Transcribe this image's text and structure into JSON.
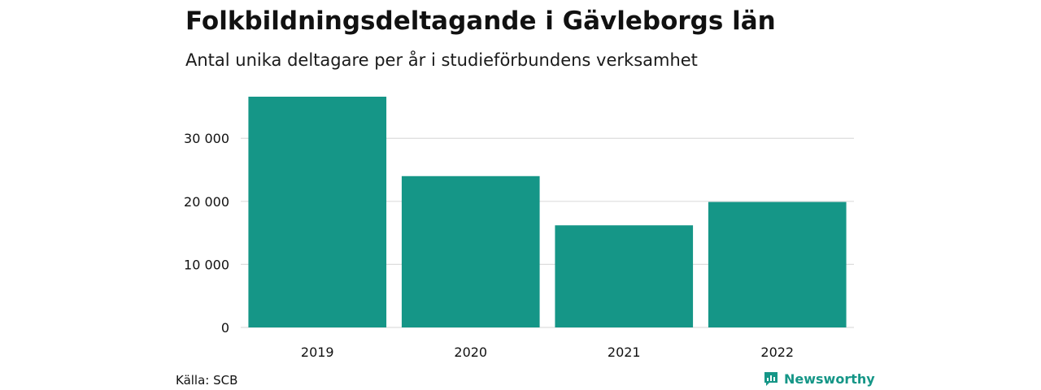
{
  "header": {
    "title": "Folkbildningsdeltagande i Gävleborgs län",
    "subtitle": "Antal unika deltagare per år i studieförbundens verksamhet"
  },
  "footer": {
    "source": "Källa: SCB",
    "brand": "Newsworthy"
  },
  "colors": {
    "bar": "#159687",
    "grid": "#dddddd",
    "text": "#111111"
  },
  "chart_data": {
    "type": "bar",
    "title": "Folkbildningsdeltagande i Gävleborgs län",
    "subtitle": "Antal unika deltagare per år i studieförbundens verksamhet",
    "xlabel": "",
    "ylabel": "",
    "categories": [
      "2019",
      "2020",
      "2021",
      "2022"
    ],
    "values": [
      36600,
      24000,
      16200,
      19900
    ],
    "ylim": [
      0,
      36600
    ],
    "yticks": [
      0,
      10000,
      20000,
      30000
    ],
    "ytick_labels": [
      "0",
      "10 000",
      "20 000",
      "30 000"
    ],
    "grid": true,
    "legend": "none"
  }
}
